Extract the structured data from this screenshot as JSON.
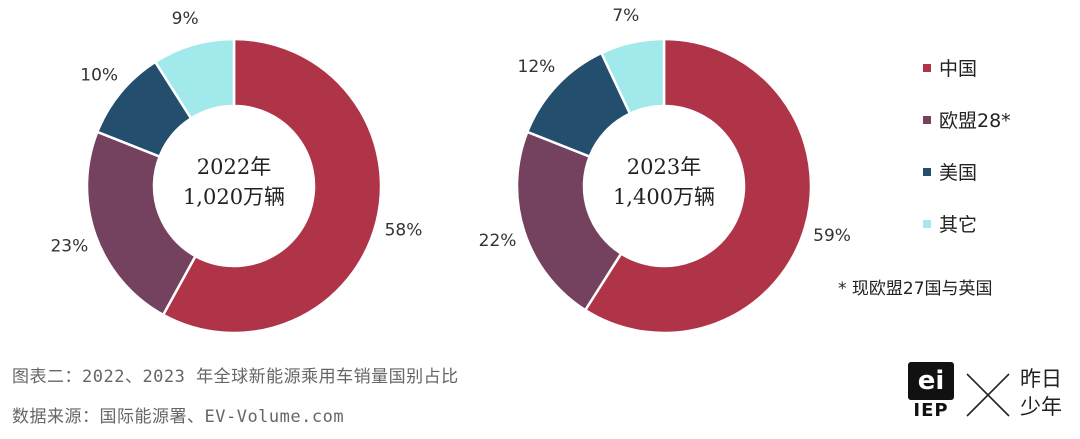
{
  "chart_data": [
    {
      "type": "pie",
      "center_label": [
        "2022年",
        "1,020万辆"
      ],
      "categories": [
        "中国",
        "欧盟28*",
        "美国",
        "其它"
      ],
      "values": [
        58,
        23,
        10,
        9
      ],
      "value_labels": [
        "58%",
        "23%",
        "10%",
        "9%"
      ],
      "colors": [
        "#B03448",
        "#74425F",
        "#244E6E",
        "#A2E9EC"
      ]
    },
    {
      "type": "pie",
      "center_label": [
        "2023年",
        "1,400万辆"
      ],
      "categories": [
        "中国",
        "欧盟28*",
        "美国",
        "其它"
      ],
      "values": [
        59,
        22,
        12,
        7
      ],
      "value_labels": [
        "59%",
        "22%",
        "12%",
        "7%"
      ],
      "colors": [
        "#B03448",
        "#74425F",
        "#244E6E",
        "#A2E9EC"
      ]
    }
  ],
  "legend": {
    "items": [
      {
        "label": "中国",
        "color": "#B03448"
      },
      {
        "label": "欧盟28*",
        "color": "#74425F"
      },
      {
        "label": "美国",
        "color": "#244E6E"
      },
      {
        "label": "其它",
        "color": "#A2E9EC"
      }
    ],
    "note": "* 现欧盟27国与英国"
  },
  "caption": {
    "figure": "图表二：2022、2023 年全球新能源乘用车销量国别占比",
    "source": "数据来源：国际能源署、EV-Volume.com"
  },
  "logo": {
    "mark": "ei",
    "brand": "IEP",
    "name_line1": "昨日",
    "name_line2": "少年"
  }
}
